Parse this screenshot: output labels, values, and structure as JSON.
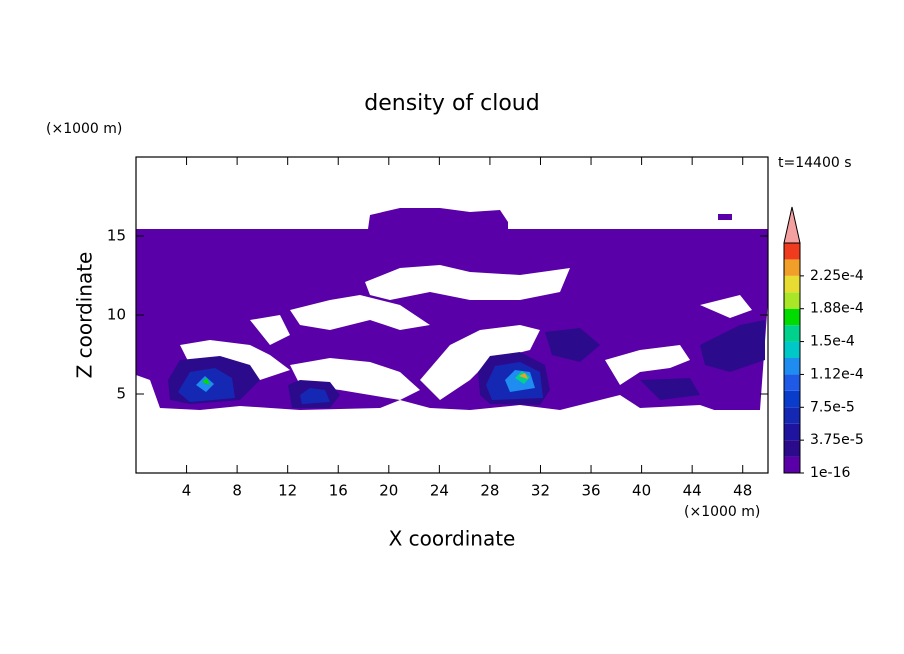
{
  "chart_data": {
    "type": "contour",
    "title": "density of cloud",
    "x_label": "X coordinate",
    "y_label": "Z coordinate",
    "x_unit": "(×1000 m)",
    "y_unit": "(×1000 m)",
    "annotation": "t=14400 s",
    "xlim": [
      0,
      50
    ],
    "ylim": [
      0,
      20
    ],
    "xticks": [
      4,
      8,
      12,
      16,
      20,
      24,
      28,
      32,
      36,
      40,
      44,
      48
    ],
    "yticks": [
      5,
      10,
      15
    ],
    "colorbar": {
      "clim": [
        0,
        0.0002625
      ],
      "colors": [
        "#5a00a8",
        "#2c0a8c",
        "#1e14a0",
        "#1428b4",
        "#0a3ccc",
        "#1e5ae6",
        "#1e8cf0",
        "#00c8c8",
        "#00d28c",
        "#00dc00",
        "#aae628",
        "#e6dc32",
        "#f0a028",
        "#f03c1e"
      ],
      "over_color": "#f4a0a0",
      "ticks": [
        {
          "value": 1e-16,
          "label": "1e-16"
        },
        {
          "value": 3.75e-05,
          "label": "3.75e-5"
        },
        {
          "value": 7.5e-05,
          "label": "7.5e-5"
        },
        {
          "value": 0.0001125,
          "label": "1.12e-4"
        },
        {
          "value": 0.00015,
          "label": "1.5e-4"
        },
        {
          "value": 0.0001875,
          "label": "1.88e-4"
        },
        {
          "value": 0.000225,
          "label": "2.25e-4"
        }
      ]
    }
  }
}
